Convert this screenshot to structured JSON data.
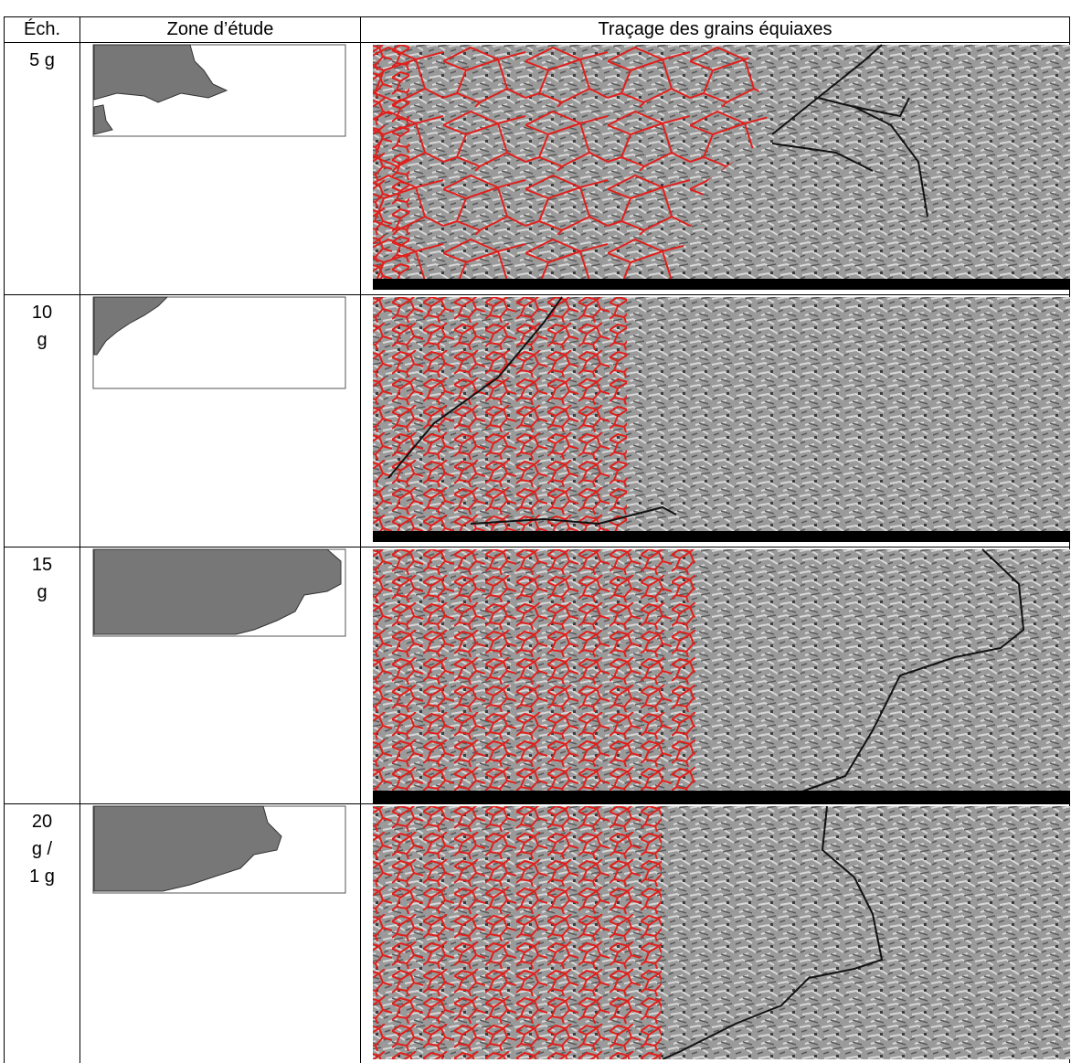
{
  "table": {
    "header": [
      "Éch.",
      "Zone d’étude",
      "Traçage des grains équiaxes"
    ],
    "rows": [
      [
        "5 g"
      ],
      [
        "10 g"
      ],
      [
        "15 g"
      ],
      [
        "20 g / 1 g"
      ]
    ]
  }
}
